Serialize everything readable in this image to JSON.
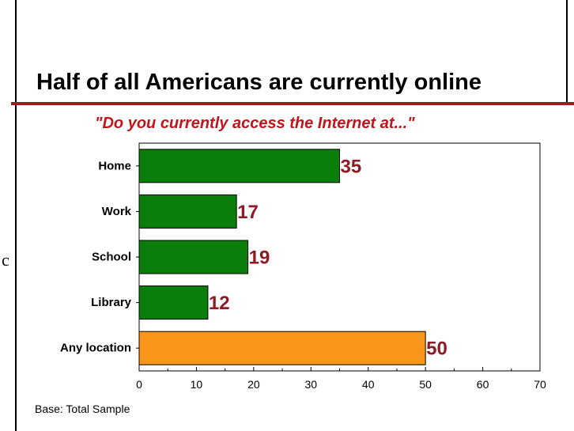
{
  "slide": {
    "title": "Half of all Americans are currently online",
    "footnote": "Base: Total Sample",
    "stray_char": "c"
  },
  "chart_data": {
    "type": "bar",
    "orientation": "horizontal",
    "title": "\"Do you currently access the Internet at...\"",
    "categories": [
      "Home",
      "Work",
      "School",
      "Library",
      "Any location"
    ],
    "values": [
      35,
      17,
      19,
      12,
      50
    ],
    "bar_colors": [
      "#0a7d0a",
      "#0a7d0a",
      "#0a7d0a",
      "#0a7d0a",
      "#f7961b"
    ],
    "value_label_color": "#8e1a24",
    "xlim": [
      0,
      70
    ],
    "xticks": [
      0,
      10,
      20,
      30,
      40,
      50,
      60,
      70
    ],
    "xlabel": "",
    "ylabel": "",
    "grid": false,
    "legend": "none"
  },
  "colors": {
    "title_rule": "#9b1b22",
    "subtitle": "#c0151b"
  }
}
